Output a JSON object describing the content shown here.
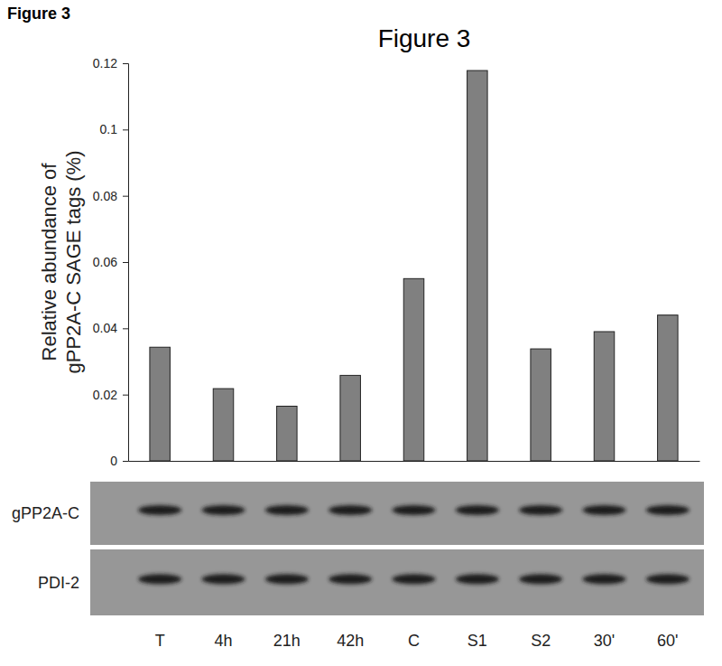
{
  "chart_data": {
    "type": "bar",
    "title": "Figure 3",
    "ylabel": [
      "Relative abundance of",
      "gPP2A-C SAGE tags (%)"
    ],
    "categories": [
      "T",
      "4h",
      "21h",
      "42h",
      "C",
      "S1",
      "S2",
      "30'",
      "60'"
    ],
    "values": [
      0.0343,
      0.0218,
      0.0165,
      0.0258,
      0.055,
      0.1178,
      0.0338,
      0.039,
      0.044
    ],
    "color": "#808080",
    "ylim": [
      0,
      0.12
    ],
    "yticks": [
      0,
      0.02,
      0.04,
      0.06,
      0.08,
      0.1,
      0.12
    ],
    "grid": false
  },
  "figure": {
    "label": "Figure 3"
  },
  "blot": {
    "rows": [
      "gPP2A-C",
      "PDI-2"
    ]
  }
}
